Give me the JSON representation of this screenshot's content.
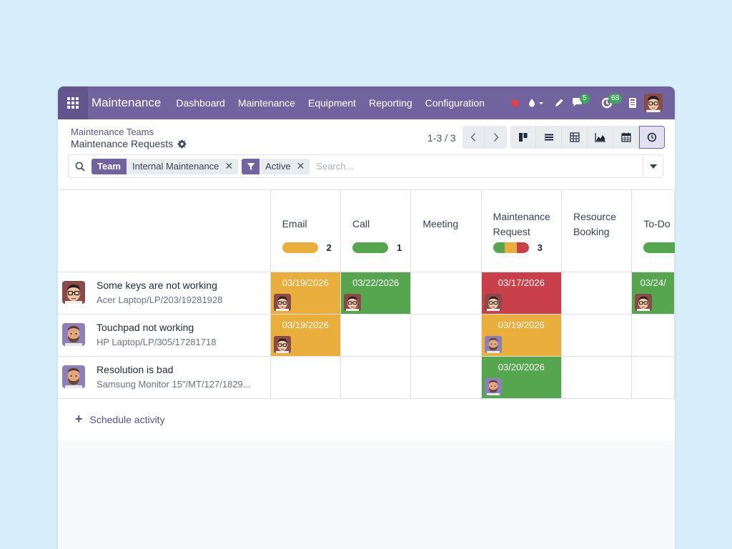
{
  "navbar": {
    "brand": "Maintenance",
    "menu": [
      "Dashboard",
      "Maintenance",
      "Equipment",
      "Reporting",
      "Configuration"
    ],
    "messages_count": "5",
    "activities_count": "68"
  },
  "breadcrumb": {
    "parent": "Maintenance Teams",
    "current": "Maintenance Requests"
  },
  "pager": {
    "value": "1-3 / 3"
  },
  "search": {
    "facets": [
      {
        "label": "Team",
        "value": "Internal Maintenance"
      },
      {
        "label": "filter-icon",
        "value": "Active"
      }
    ],
    "placeholder": "Search..."
  },
  "grid": {
    "columns": [
      {
        "title": "Email",
        "count": "2",
        "bar": [
          {
            "color": "#e9ae3c",
            "share": 1
          }
        ]
      },
      {
        "title": "Call",
        "count": "1",
        "bar": [
          {
            "color": "#56a64f",
            "share": 1
          }
        ]
      },
      {
        "title": "Meeting",
        "count": "",
        "bar": []
      },
      {
        "title": "Maintenance Request",
        "count": "3",
        "bar": [
          {
            "color": "#56a64f",
            "share": 0.3333
          },
          {
            "color": "#e9ae3c",
            "share": 0.3333
          },
          {
            "color": "#c9404a",
            "share": 0.3334
          }
        ]
      },
      {
        "title": "Resource Booking",
        "count": "",
        "bar": []
      },
      {
        "title": "To-Do",
        "count": "",
        "bar": [
          {
            "color": "#56a64f",
            "share": 1
          }
        ]
      }
    ],
    "rows": [
      {
        "name": "Some keys are not working",
        "ref": "Acer Laptop/LP/203/19281928",
        "avatar": "glasses",
        "cells": [
          {
            "date": "03/19/2026",
            "state": "orange",
            "avatar": "glasses"
          },
          {
            "date": "03/22/2026",
            "state": "green",
            "avatar": "glasses"
          },
          null,
          {
            "date": "03/17/2026",
            "state": "red",
            "avatar": "glasses"
          },
          null,
          {
            "date": "03/24/",
            "state": "green",
            "avatar": "glasses"
          }
        ]
      },
      {
        "name": "Touchpad not working",
        "ref": "HP Laptop/LP/305/17281718",
        "avatar": "beard",
        "cells": [
          {
            "date": "03/19/2026",
            "state": "orange",
            "avatar": "glasses"
          },
          null,
          null,
          {
            "date": "03/19/2026",
            "state": "orange",
            "avatar": "beard"
          },
          null,
          null
        ]
      },
      {
        "name": "Resolution is bad",
        "ref": "Samsung Monitor 15\"/MT/127/1829...",
        "avatar": "beard",
        "cells": [
          null,
          null,
          null,
          {
            "date": "03/20/2026",
            "state": "green",
            "avatar": "beard"
          },
          null,
          null
        ]
      }
    ]
  },
  "schedule_activity": "Schedule activity"
}
